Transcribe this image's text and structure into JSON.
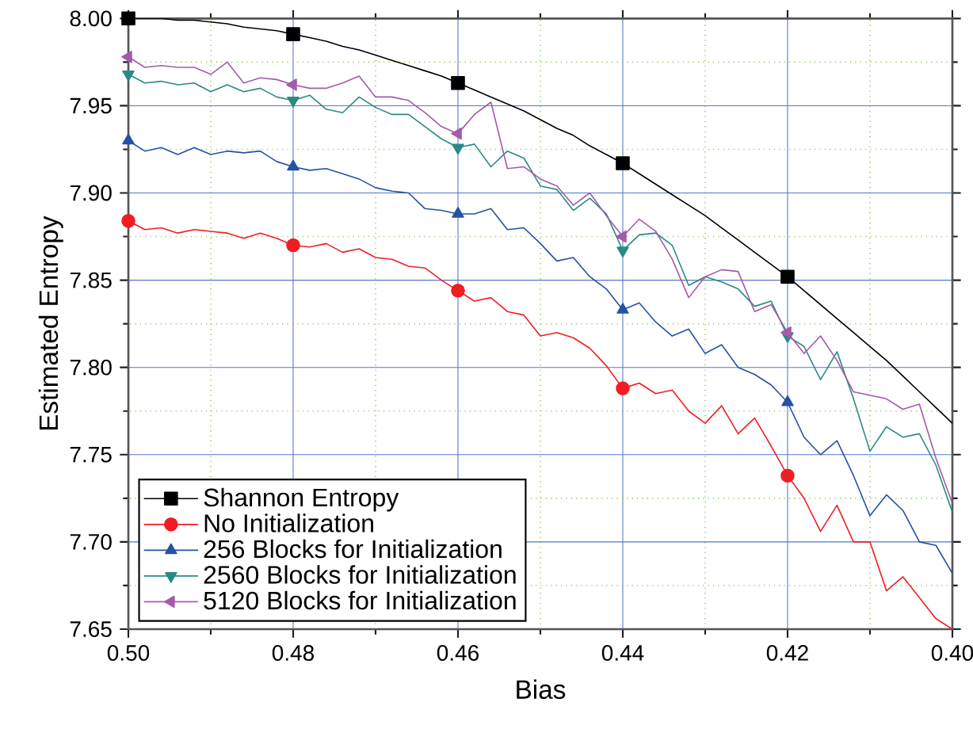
{
  "chart_data": {
    "type": "line",
    "xlabel": "Bias",
    "ylabel": "Estimated Entropy",
    "x": [
      0.5,
      0.498,
      0.496,
      0.494,
      0.492,
      0.49,
      0.488,
      0.486,
      0.484,
      0.482,
      0.48,
      0.478,
      0.476,
      0.474,
      0.472,
      0.47,
      0.468,
      0.466,
      0.464,
      0.462,
      0.46,
      0.458,
      0.456,
      0.454,
      0.452,
      0.45,
      0.448,
      0.446,
      0.444,
      0.442,
      0.44,
      0.438,
      0.436,
      0.434,
      0.432,
      0.43,
      0.428,
      0.426,
      0.424,
      0.422,
      0.42,
      0.418,
      0.416,
      0.414,
      0.412,
      0.41,
      0.408,
      0.406,
      0.404,
      0.402,
      0.4
    ],
    "series": [
      {
        "name": "Shannon Entropy",
        "color": "#000000",
        "values": [
          8.0,
          8.0,
          8.0,
          7.999,
          7.999,
          7.998,
          7.997,
          7.995,
          7.994,
          7.993,
          7.991,
          7.989,
          7.987,
          7.984,
          7.982,
          7.979,
          7.976,
          7.973,
          7.97,
          7.967,
          7.963,
          7.959,
          7.955,
          7.951,
          7.947,
          7.942,
          7.937,
          7.933,
          7.927,
          7.922,
          7.917,
          7.911,
          7.905,
          7.899,
          7.893,
          7.887,
          7.88,
          7.873,
          7.866,
          7.859,
          7.852,
          7.844,
          7.836,
          7.828,
          7.82,
          7.812,
          7.804,
          7.795,
          7.786,
          7.777,
          7.768
        ]
      },
      {
        "name": "No Initialization",
        "color": "#f01e23",
        "values": [
          7.884,
          7.879,
          7.88,
          7.877,
          7.879,
          7.878,
          7.877,
          7.874,
          7.877,
          7.874,
          7.87,
          7.869,
          7.871,
          7.866,
          7.868,
          7.863,
          7.862,
          7.858,
          7.857,
          7.85,
          7.844,
          7.838,
          7.84,
          7.832,
          7.83,
          7.818,
          7.82,
          7.817,
          7.811,
          7.801,
          7.788,
          7.791,
          7.785,
          7.787,
          7.775,
          7.768,
          7.778,
          7.762,
          7.771,
          7.755,
          7.738,
          7.725,
          7.706,
          7.721,
          7.7,
          7.7,
          7.672,
          7.68,
          7.668,
          7.656,
          7.65
        ]
      },
      {
        "name": "256 Blocks for Initialization",
        "color": "#2452a4",
        "values": [
          7.93,
          7.924,
          7.926,
          7.922,
          7.926,
          7.922,
          7.924,
          7.923,
          7.924,
          7.918,
          7.915,
          7.913,
          7.914,
          7.911,
          7.908,
          7.903,
          7.901,
          7.9,
          7.891,
          7.89,
          7.888,
          7.888,
          7.891,
          7.879,
          7.88,
          7.871,
          7.861,
          7.863,
          7.852,
          7.845,
          7.833,
          7.837,
          7.826,
          7.818,
          7.822,
          7.808,
          7.813,
          7.8,
          7.796,
          7.79,
          7.78,
          7.76,
          7.75,
          7.758,
          7.738,
          7.715,
          7.727,
          7.718,
          7.7,
          7.698,
          7.682
        ]
      },
      {
        "name": "2560 Blocks for Initialization",
        "color": "#2a8a84",
        "values": [
          7.968,
          7.963,
          7.964,
          7.962,
          7.963,
          7.958,
          7.962,
          7.958,
          7.96,
          7.955,
          7.953,
          7.956,
          7.948,
          7.946,
          7.955,
          7.949,
          7.945,
          7.945,
          7.938,
          7.931,
          7.926,
          7.928,
          7.915,
          7.924,
          7.92,
          7.904,
          7.902,
          7.89,
          7.897,
          7.888,
          7.867,
          7.876,
          7.877,
          7.87,
          7.847,
          7.852,
          7.849,
          7.845,
          7.835,
          7.838,
          7.818,
          7.812,
          7.793,
          7.809,
          7.782,
          7.752,
          7.766,
          7.76,
          7.762,
          7.744,
          7.717
        ]
      },
      {
        "name": "5120 Blocks for Initialization",
        "color": "#a55aaa",
        "values": [
          7.978,
          7.972,
          7.973,
          7.972,
          7.972,
          7.968,
          7.975,
          7.963,
          7.966,
          7.965,
          7.962,
          7.96,
          7.96,
          7.963,
          7.967,
          7.955,
          7.955,
          7.953,
          7.946,
          7.938,
          7.934,
          7.945,
          7.952,
          7.914,
          7.915,
          7.908,
          7.904,
          7.893,
          7.9,
          7.887,
          7.875,
          7.885,
          7.878,
          7.862,
          7.84,
          7.852,
          7.856,
          7.855,
          7.832,
          7.836,
          7.82,
          7.808,
          7.818,
          7.804,
          7.786,
          7.784,
          7.782,
          7.776,
          7.779,
          7.748,
          7.722
        ]
      },
      {
        "type": "scatter",
        "color": "#000000",
        "marker": "square",
        "x": [
          0.5,
          0.48,
          0.46,
          0.44,
          0.42
        ],
        "values": [
          8.0,
          7.991,
          7.963,
          7.917,
          7.852
        ]
      },
      {
        "type": "scatter",
        "color": "#f01e23",
        "marker": "circle",
        "x": [
          0.5,
          0.48,
          0.46,
          0.44,
          0.42
        ],
        "values": [
          7.884,
          7.87,
          7.844,
          7.788,
          7.738
        ]
      },
      {
        "type": "scatter",
        "color": "#2452a4",
        "marker": "triangle",
        "x": [
          0.5,
          0.48,
          0.46,
          0.44,
          0.42
        ],
        "values": [
          7.93,
          7.915,
          7.888,
          7.833,
          7.78
        ]
      },
      {
        "type": "scatter",
        "color": "#2a8a84",
        "marker": "triangle-down",
        "x": [
          0.5,
          0.48,
          0.46,
          0.44,
          0.42
        ],
        "values": [
          7.968,
          7.953,
          7.926,
          7.867,
          7.818
        ]
      },
      {
        "type": "scatter",
        "color": "#a55aaa",
        "marker": "triangle-left",
        "x": [
          0.5,
          0.48,
          0.46,
          0.44,
          0.42
        ],
        "values": [
          7.978,
          7.962,
          7.934,
          7.875,
          7.82
        ]
      }
    ],
    "xlim": [
      0.5,
      0.4
    ],
    "xticks": [
      {
        "value": 0.5,
        "label": "0.50"
      },
      {
        "value": 0.49,
        "label": null
      },
      {
        "value": 0.48,
        "label": "0.48"
      },
      {
        "value": 0.47,
        "label": null
      },
      {
        "value": 0.46,
        "label": "0.46"
      },
      {
        "value": 0.45,
        "label": null
      },
      {
        "value": 0.44,
        "label": "0.44"
      },
      {
        "value": 0.43,
        "label": null
      },
      {
        "value": 0.42,
        "label": "0.42"
      },
      {
        "value": 0.41,
        "label": null
      },
      {
        "value": 0.4,
        "label": "0.40"
      }
    ],
    "ylim": [
      7.65,
      8.0
    ],
    "yticks": [
      {
        "value": 7.65,
        "label": "7.65"
      },
      {
        "value": 7.675,
        "label": null
      },
      {
        "value": 7.7,
        "label": "7.70"
      },
      {
        "value": 7.725,
        "label": null
      },
      {
        "value": 7.75,
        "label": "7.75"
      },
      {
        "value": 7.775,
        "label": null
      },
      {
        "value": 7.8,
        "label": "7.80"
      },
      {
        "value": 7.825,
        "label": null
      },
      {
        "value": 7.85,
        "label": "7.85"
      },
      {
        "value": 7.875,
        "label": null
      },
      {
        "value": 7.9,
        "label": "7.90"
      },
      {
        "value": 7.925,
        "label": null
      },
      {
        "value": 7.95,
        "label": "7.95"
      },
      {
        "value": 7.975,
        "label": null
      },
      {
        "value": 8.0,
        "label": "8.00"
      }
    ],
    "grid": true,
    "legend": "bottom left",
    "line_style": "solid"
  }
}
